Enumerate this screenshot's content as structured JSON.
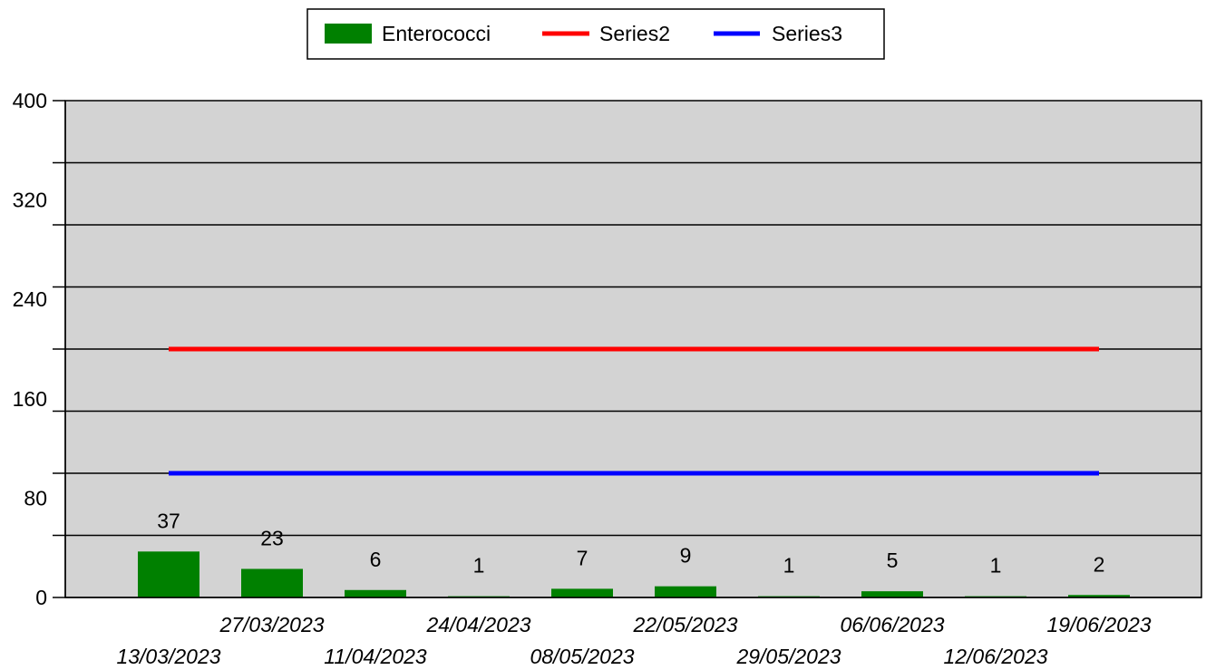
{
  "chart_data": {
    "type": "bar",
    "categories": [
      "13/03/2023",
      "27/03/2023",
      "11/04/2023",
      "24/04/2023",
      "08/05/2023",
      "22/05/2023",
      "29/05/2023",
      "06/06/2023",
      "12/06/2023",
      "19/06/2023"
    ],
    "series": [
      {
        "name": "Enterococci",
        "type": "bar",
        "color": "#008000",
        "values": [
          37,
          23,
          6,
          1,
          7,
          9,
          1,
          5,
          1,
          2
        ]
      },
      {
        "name": "Series2",
        "type": "line",
        "color": "#ff0000",
        "values": [
          200,
          200,
          200,
          200,
          200,
          200,
          200,
          200,
          200,
          200
        ]
      },
      {
        "name": "Series3",
        "type": "line",
        "color": "#0000ff",
        "values": [
          100,
          100,
          100,
          100,
          100,
          100,
          100,
          100,
          100,
          100
        ]
      }
    ],
    "data_labels": [
      "37",
      "23",
      "6",
      "1",
      "7",
      "9",
      "1",
      "5",
      "1",
      "2"
    ],
    "ylim": [
      0,
      400
    ],
    "yticks": [
      "0",
      "80",
      "160",
      "240",
      "320",
      "400"
    ],
    "gridlines_every": 50,
    "grid": true,
    "legend_position": "top-center",
    "plot_background": "#d3d3d3",
    "title": "",
    "xlabel": "",
    "ylabel": ""
  }
}
